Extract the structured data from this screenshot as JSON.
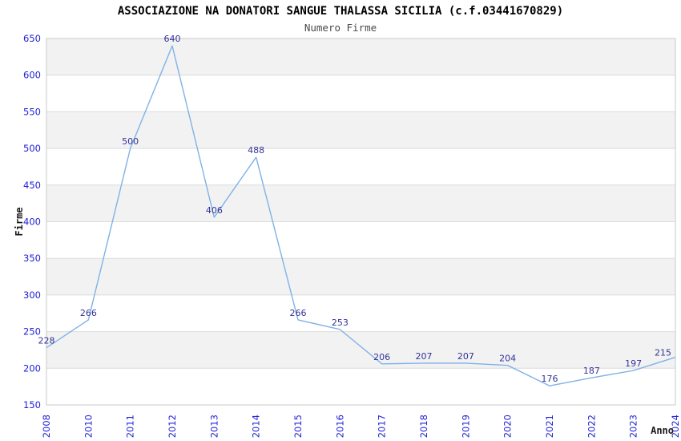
{
  "chart_data": {
    "type": "line",
    "title": "ASSOCIAZIONE NA DONATORI SANGUE THALASSA SICILIA (c.f.03441670829)",
    "subtitle": "Numero Firme",
    "xlabel": "Anno",
    "ylabel": "Firme",
    "categories": [
      "2008",
      "2010",
      "2011",
      "2012",
      "2013",
      "2014",
      "2015",
      "2016",
      "2017",
      "2018",
      "2019",
      "2020",
      "2021",
      "2022",
      "2023",
      "2024"
    ],
    "values": [
      228,
      266,
      500,
      640,
      406,
      488,
      266,
      253,
      206,
      207,
      207,
      204,
      176,
      187,
      197,
      215
    ],
    "yticks": [
      150,
      200,
      250,
      300,
      350,
      400,
      450,
      500,
      550,
      600,
      650
    ],
    "ylim": [
      150,
      650
    ],
    "grid": true,
    "legend_position": "none",
    "band_style": "alternating horizontal stripes, gray topmost",
    "colors": {
      "line": "#7fb2e8",
      "data_label": "#333399",
      "tick_label": "#2121d6",
      "title": "#000000",
      "subtitle": "#4a4a4a",
      "axis_title": "#1a1a1a",
      "band_gray": "#f2f2f2",
      "band_white": "#ffffff",
      "gridline": "#dcdcdc",
      "plot_border": "#c9c9c9",
      "background": "#ffffff"
    }
  }
}
